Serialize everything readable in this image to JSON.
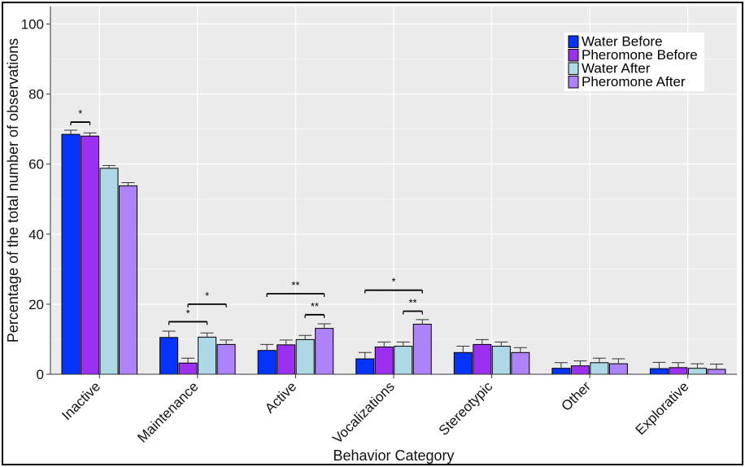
{
  "chart_data": {
    "type": "bar",
    "xlabel": "Behavior Category",
    "ylabel": "Percentage of the total number of observations",
    "ylim": [
      0,
      105
    ],
    "yticks": [
      0,
      20,
      40,
      60,
      80,
      100
    ],
    "grid": true,
    "legend_position": "top-right",
    "categories": [
      "Inactive",
      "Maintenance",
      "Active",
      "Vocalizations",
      "Stereotypic",
      "Other",
      "Explorative"
    ],
    "series": [
      {
        "name": "Water Before",
        "color": "#0533ff",
        "values": [
          68.5,
          10.5,
          6.8,
          4.4,
          6.2,
          1.7,
          1.6
        ],
        "errors": [
          1.2,
          1.8,
          1.7,
          1.8,
          1.8,
          1.6,
          1.8
        ]
      },
      {
        "name": "Pheromone Before",
        "color": "#9b30f0",
        "values": [
          68.0,
          3.2,
          8.4,
          7.8,
          8.5,
          2.4,
          1.9
        ],
        "errors": [
          0.9,
          1.4,
          1.4,
          1.4,
          1.4,
          1.4,
          1.4
        ]
      },
      {
        "name": "Water After",
        "color": "#add8e6",
        "values": [
          58.8,
          10.6,
          9.9,
          8.0,
          8.0,
          3.3,
          1.7
        ],
        "errors": [
          0.8,
          1.2,
          1.2,
          1.2,
          1.2,
          1.3,
          1.3
        ]
      },
      {
        "name": "Pheromone After",
        "color": "#ae82fa",
        "values": [
          53.8,
          8.5,
          13.1,
          14.3,
          6.2,
          3.0,
          1.4
        ],
        "errors": [
          0.9,
          1.3,
          1.3,
          1.3,
          1.4,
          1.4,
          1.5
        ]
      }
    ],
    "annotations": [
      {
        "category": 0,
        "from_series": 0,
        "to_series": 1,
        "y": 72.0,
        "label": "*"
      },
      {
        "category": 1,
        "from_series": 0,
        "to_series": 2,
        "y": 15.0,
        "label": "*"
      },
      {
        "category": 1,
        "from_series": 1,
        "to_series": 3,
        "y": 20.0,
        "label": "*"
      },
      {
        "category": 2,
        "from_series": 0,
        "to_series": 3,
        "y": 23.0,
        "label": "**"
      },
      {
        "category": 2,
        "from_series": 2,
        "to_series": 3,
        "y": 17.0,
        "label": "**"
      },
      {
        "category": 3,
        "from_series": 0,
        "to_series": 3,
        "y": 24.0,
        "label": "*"
      },
      {
        "category": 3,
        "from_series": 2,
        "to_series": 3,
        "y": 18.0,
        "label": "**"
      }
    ]
  }
}
